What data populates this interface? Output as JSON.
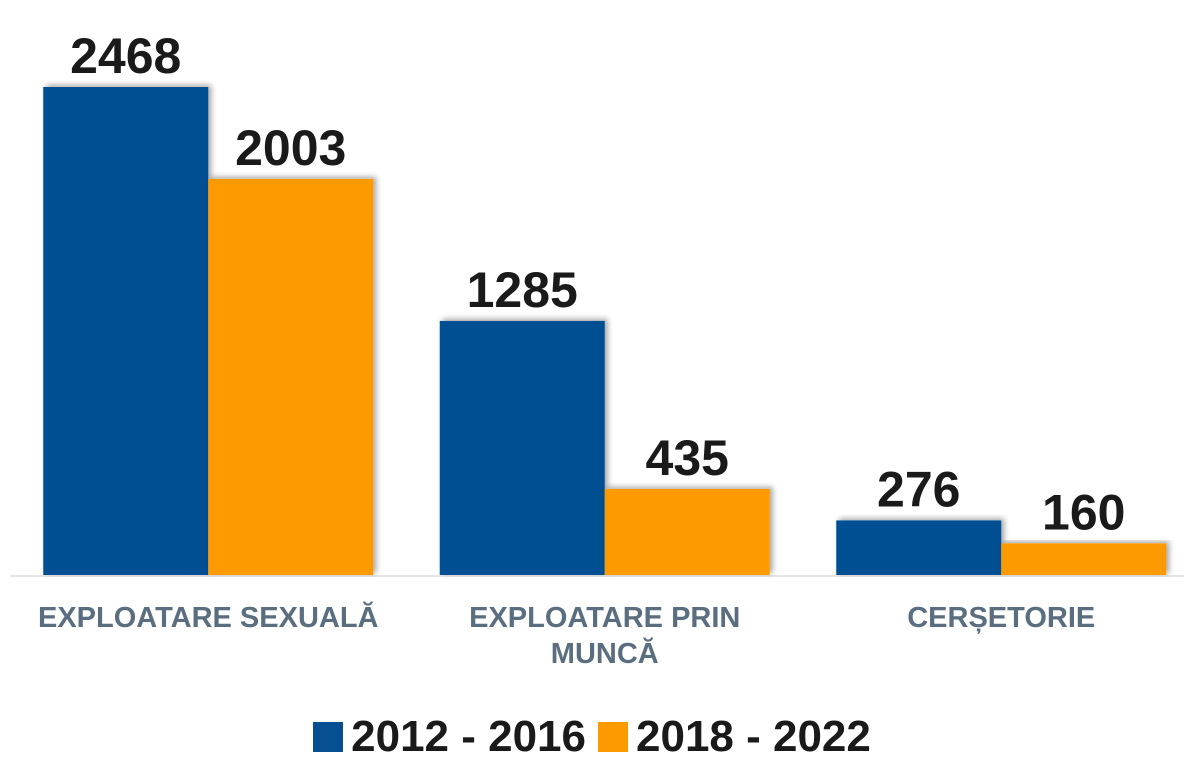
{
  "chart_data": {
    "type": "bar",
    "categories": [
      "EXPLOATARE SEXUALĂ",
      "EXPLOATARE PRIN MUNCĂ",
      "CERȘETORIE"
    ],
    "series": [
      {
        "name": "2012 - 2016",
        "color": "#064f93",
        "values": [
          2468,
          1285,
          276
        ]
      },
      {
        "name": "2018 - 2022",
        "color": "#fd9a00",
        "values": [
          2003,
          435,
          160
        ]
      }
    ]
  }
}
